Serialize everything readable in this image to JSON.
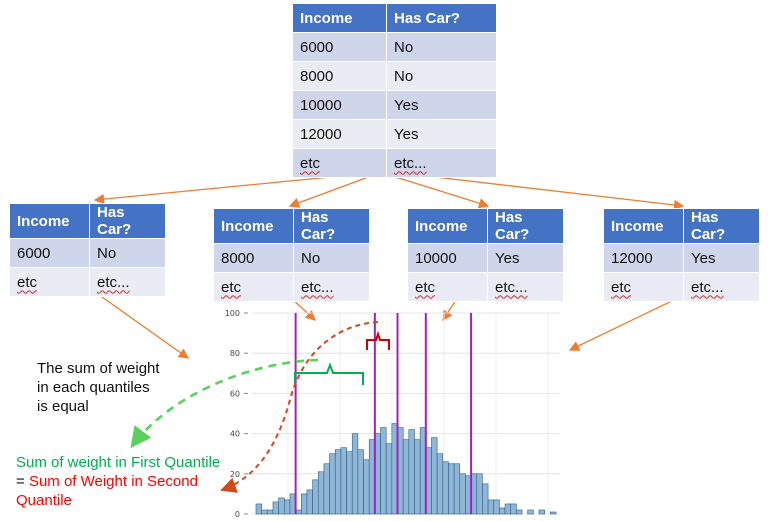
{
  "top_table": {
    "headers": [
      "Income",
      "Has Car?"
    ],
    "rows": [
      [
        "6000",
        "No"
      ],
      [
        "8000",
        "No"
      ],
      [
        "10000",
        "Yes"
      ],
      [
        "12000",
        "Yes"
      ],
      [
        "etc",
        "etc..."
      ]
    ]
  },
  "child_tables": [
    {
      "headers": [
        "Income",
        "Has Car?"
      ],
      "rows": [
        [
          "6000",
          "No"
        ],
        [
          "etc",
          "etc..."
        ]
      ]
    },
    {
      "headers": [
        "Income",
        "Has Car?"
      ],
      "rows": [
        [
          "8000",
          "No"
        ],
        [
          "etc",
          "etc..."
        ]
      ]
    },
    {
      "headers": [
        "Income",
        "Has Car?"
      ],
      "rows": [
        [
          "10000",
          "Yes"
        ],
        [
          "etc",
          "etc..."
        ]
      ]
    },
    {
      "headers": [
        "Income",
        "Has Car?"
      ],
      "rows": [
        [
          "12000",
          "Yes"
        ],
        [
          "etc",
          "etc..."
        ]
      ]
    }
  ],
  "annotations": {
    "weight_note": [
      "The sum of weight",
      "in each quantiles",
      "is equal"
    ],
    "first_quantile": "Sum of weight in First Quantile",
    "equals_prefix": "= ",
    "second_quantile_line1": "Sum of Weight in Second",
    "second_quantile_line2": "Quantile"
  },
  "colors": {
    "header_blue": "#4472c4",
    "row_dark": "#cfd5ea",
    "row_light": "#e9ebf5",
    "arrow_orange": "#ed7d31",
    "bar_fill": "#8fb6d6",
    "bar_stroke": "#2d5f86",
    "quantile_line": "#a020c0",
    "green": "#00b050",
    "red": "#ff0000"
  },
  "chart_data": {
    "type": "bar",
    "ylim": [
      0,
      100
    ],
    "yticks": [
      "0",
      "20",
      "40",
      "60",
      "80",
      "100"
    ],
    "values": [
      5,
      2,
      2,
      6,
      8,
      7,
      10,
      2,
      10,
      12,
      17,
      21,
      25,
      30,
      32,
      33,
      31,
      40,
      32,
      27,
      37,
      40,
      43,
      35,
      45,
      43,
      37,
      42,
      37,
      43,
      33,
      38,
      30,
      26,
      25,
      25,
      20,
      19,
      20,
      20,
      15,
      7,
      7,
      3,
      5,
      5,
      2,
      0,
      2,
      0,
      2,
      0,
      1
    ],
    "quantile_boundaries_bin": [
      7,
      21,
      25,
      30,
      38
    ],
    "note": "five vertical quantile boundary lines overlaid on histogram"
  }
}
